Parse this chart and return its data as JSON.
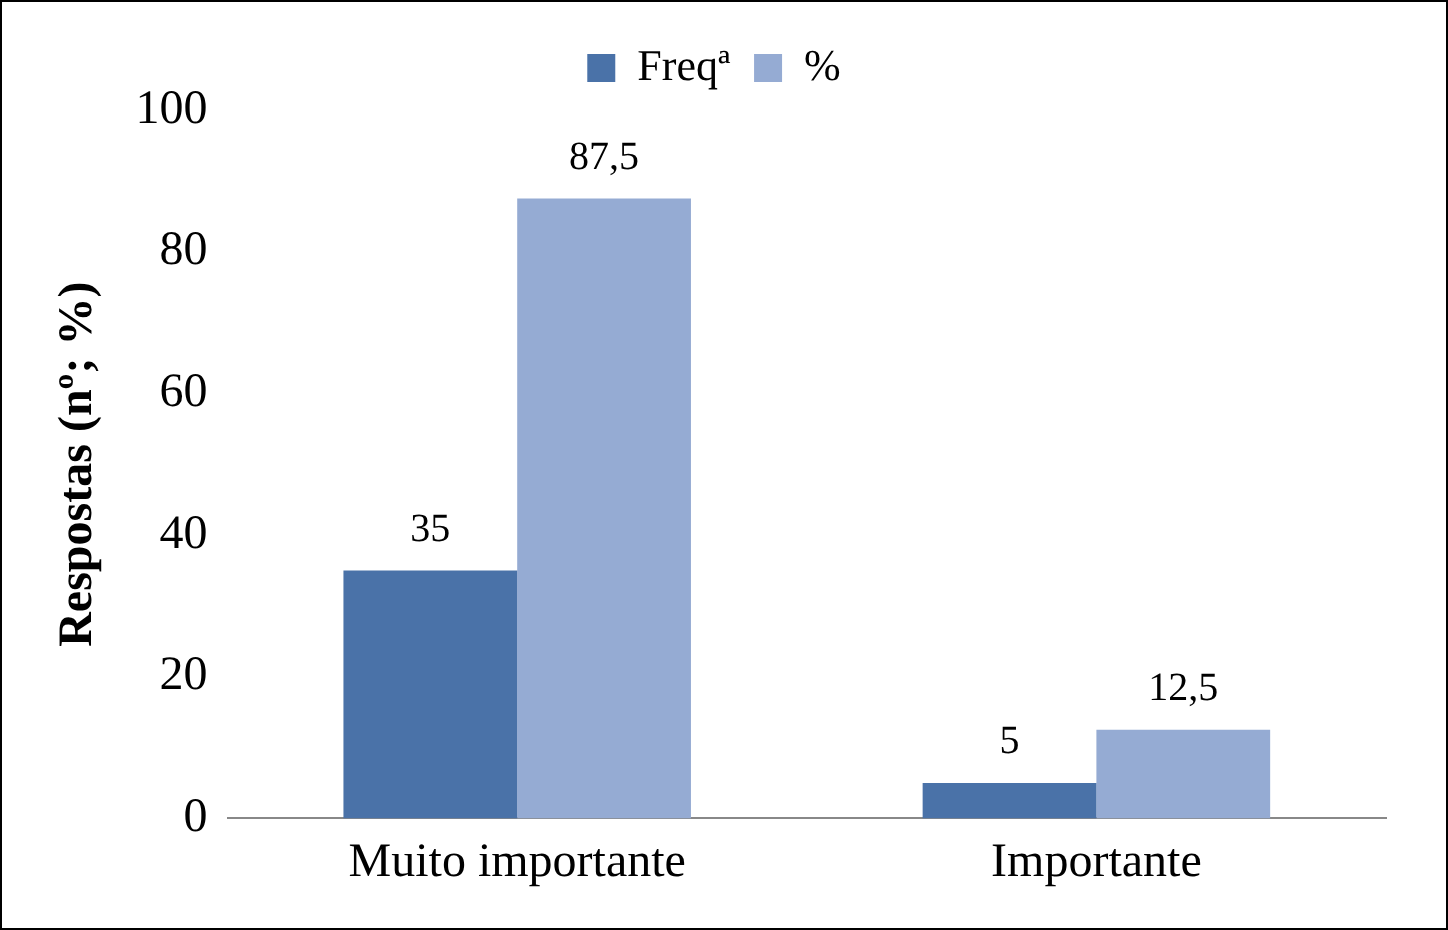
{
  "chart_data": {
    "type": "bar",
    "ylabel": "Respostas (nº; %)",
    "categories": [
      "Muito importante",
      "Importante"
    ],
    "series": [
      {
        "name": "Freqª",
        "color": "#4a72a8",
        "values": [
          35,
          5
        ],
        "value_labels": [
          "35",
          "5"
        ]
      },
      {
        "name": "%",
        "color": "#95abd3",
        "values": [
          87.5,
          12.5
        ],
        "value_labels": [
          "87,5",
          "12,5"
        ]
      }
    ],
    "ylim": [
      0,
      100
    ],
    "yticks": [
      0,
      20,
      40,
      60,
      80,
      100
    ],
    "grid": false,
    "legend": "top"
  }
}
